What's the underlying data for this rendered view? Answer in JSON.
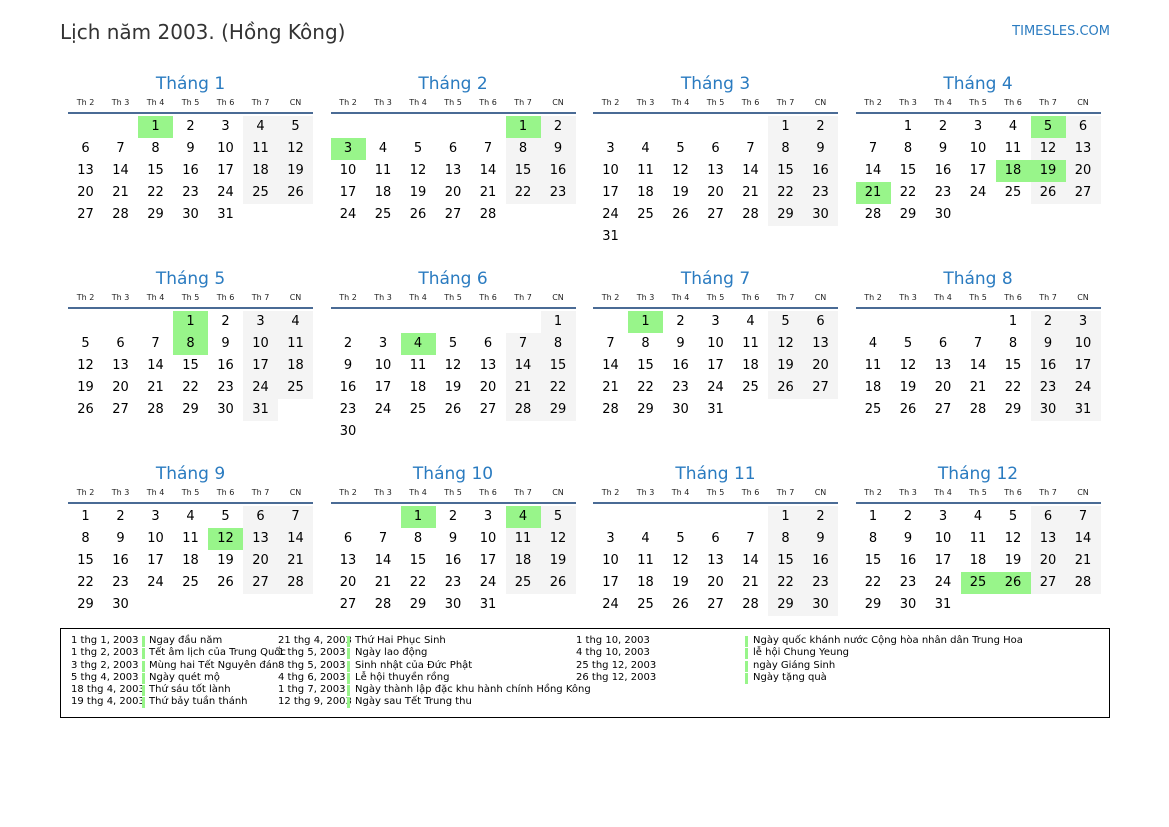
{
  "header": {
    "title": "Lịch năm 2003. (Hồng Kông)",
    "brand": "TIMESLES.COM"
  },
  "weekdays": [
    "Th 2",
    "Th 3",
    "Th 4",
    "Th 5",
    "Th 6",
    "Th 7",
    "CN"
  ],
  "colors": {
    "holiday": "#98f58a",
    "weekend": "#f4f4f4",
    "accent": "#2a7bc0"
  },
  "months": [
    {
      "title": "Tháng 1",
      "first_weekday": 2,
      "days": 31,
      "holidays": [
        1
      ]
    },
    {
      "title": "Tháng 2",
      "first_weekday": 5,
      "days": 28,
      "holidays": [
        1,
        3
      ]
    },
    {
      "title": "Tháng 3",
      "first_weekday": 5,
      "days": 31,
      "holidays": []
    },
    {
      "title": "Tháng 4",
      "first_weekday": 1,
      "days": 30,
      "holidays": [
        5,
        18,
        19,
        21
      ]
    },
    {
      "title": "Tháng 5",
      "first_weekday": 3,
      "days": 31,
      "holidays": [
        1,
        8
      ]
    },
    {
      "title": "Tháng 6",
      "first_weekday": 6,
      "days": 30,
      "holidays": [
        4
      ]
    },
    {
      "title": "Tháng 7",
      "first_weekday": 1,
      "days": 31,
      "holidays": [
        1
      ]
    },
    {
      "title": "Tháng 8",
      "first_weekday": 4,
      "days": 31,
      "holidays": []
    },
    {
      "title": "Tháng 9",
      "first_weekday": 0,
      "days": 30,
      "holidays": [
        12
      ]
    },
    {
      "title": "Tháng 10",
      "first_weekday": 2,
      "days": 31,
      "holidays": [
        1,
        4
      ]
    },
    {
      "title": "Tháng 11",
      "first_weekday": 5,
      "days": 30,
      "holidays": []
    },
    {
      "title": "Tháng 12",
      "first_weekday": 0,
      "days": 31,
      "holidays": [
        25,
        26
      ]
    }
  ],
  "legend": [
    [
      {
        "date": "1 thg 1, 2003",
        "name": "Ngay đầu năm"
      },
      {
        "date": "1 thg 2, 2003",
        "name": "Tết âm lịch của Trung Quốc"
      },
      {
        "date": "3 thg 2, 2003",
        "name": "Mùng hai Tết Nguyên đán"
      },
      {
        "date": "5 thg 4, 2003",
        "name": "Ngày quét mộ"
      },
      {
        "date": "18 thg 4, 2003",
        "name": "Thứ sáu tốt lành"
      },
      {
        "date": "19 thg 4, 2003",
        "name": "Thứ bảy tuần thánh"
      }
    ],
    [
      {
        "date": "21 thg 4, 2003",
        "name": "Thứ Hai Phục Sinh"
      },
      {
        "date": "1 thg 5, 2003",
        "name": "Ngày lao động"
      },
      {
        "date": "8 thg 5, 2003",
        "name": "Sinh nhật của Đức Phật"
      },
      {
        "date": "4 thg 6, 2003",
        "name": "Lễ hội thuyền rồng"
      },
      {
        "date": "1 thg 7, 2003",
        "name": "Ngày thành lập đặc khu hành chính Hồng Kông"
      },
      {
        "date": "12 thg 9, 2003",
        "name": "Ngày sau Tết Trung thu"
      }
    ],
    [
      {
        "date": "1 thg 10, 2003",
        "name": "Ngày quốc khánh nước Cộng hòa nhân dân Trung Hoa"
      },
      {
        "date": "4 thg 10, 2003",
        "name": "lễ hội Chung Yeung"
      },
      {
        "date": "25 thg 12, 2003",
        "name": "ngày Giáng Sinh"
      },
      {
        "date": "26 thg 12, 2003",
        "name": "Ngày tặng quà"
      }
    ]
  ]
}
